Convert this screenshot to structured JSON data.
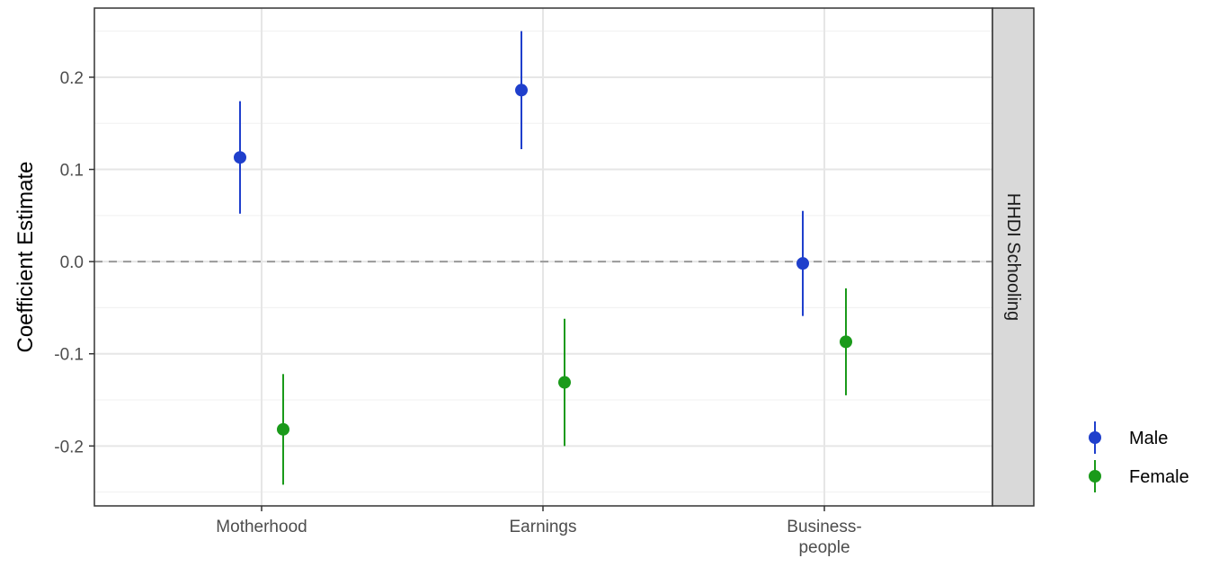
{
  "chart_data": {
    "type": "scatter",
    "subtype": "point-range",
    "categories": [
      "Motherhood",
      "Earnings",
      "Business-people"
    ],
    "category_lines": [
      [
        "Motherhood"
      ],
      [
        "Earnings"
      ],
      [
        "Business-",
        "people"
      ]
    ],
    "ylabel": "Coefficient Estimate",
    "xlabel": "",
    "ylim": [
      -0.265,
      0.275
    ],
    "yticks": [
      0.2,
      0.1,
      0.0,
      -0.1,
      -0.2
    ],
    "ytick_labels": [
      "0.2",
      "0.1",
      "0.0",
      "-0.1",
      "-0.2"
    ],
    "reference_line": 0.0,
    "facet_label": "HHDI Schooling",
    "grid": true,
    "legend_position": "right",
    "series": [
      {
        "name": "Male",
        "color": "#1f3fcc",
        "values": [
          0.113,
          0.186,
          -0.002
        ],
        "lower": [
          0.052,
          0.122,
          -0.059
        ],
        "upper": [
          0.174,
          0.25,
          0.055
        ]
      },
      {
        "name": "Female",
        "color": "#1a9a1a",
        "values": [
          -0.182,
          -0.131,
          -0.087
        ],
        "lower": [
          -0.242,
          -0.2,
          -0.145
        ],
        "upper": [
          -0.122,
          -0.062,
          -0.029
        ]
      }
    ]
  }
}
